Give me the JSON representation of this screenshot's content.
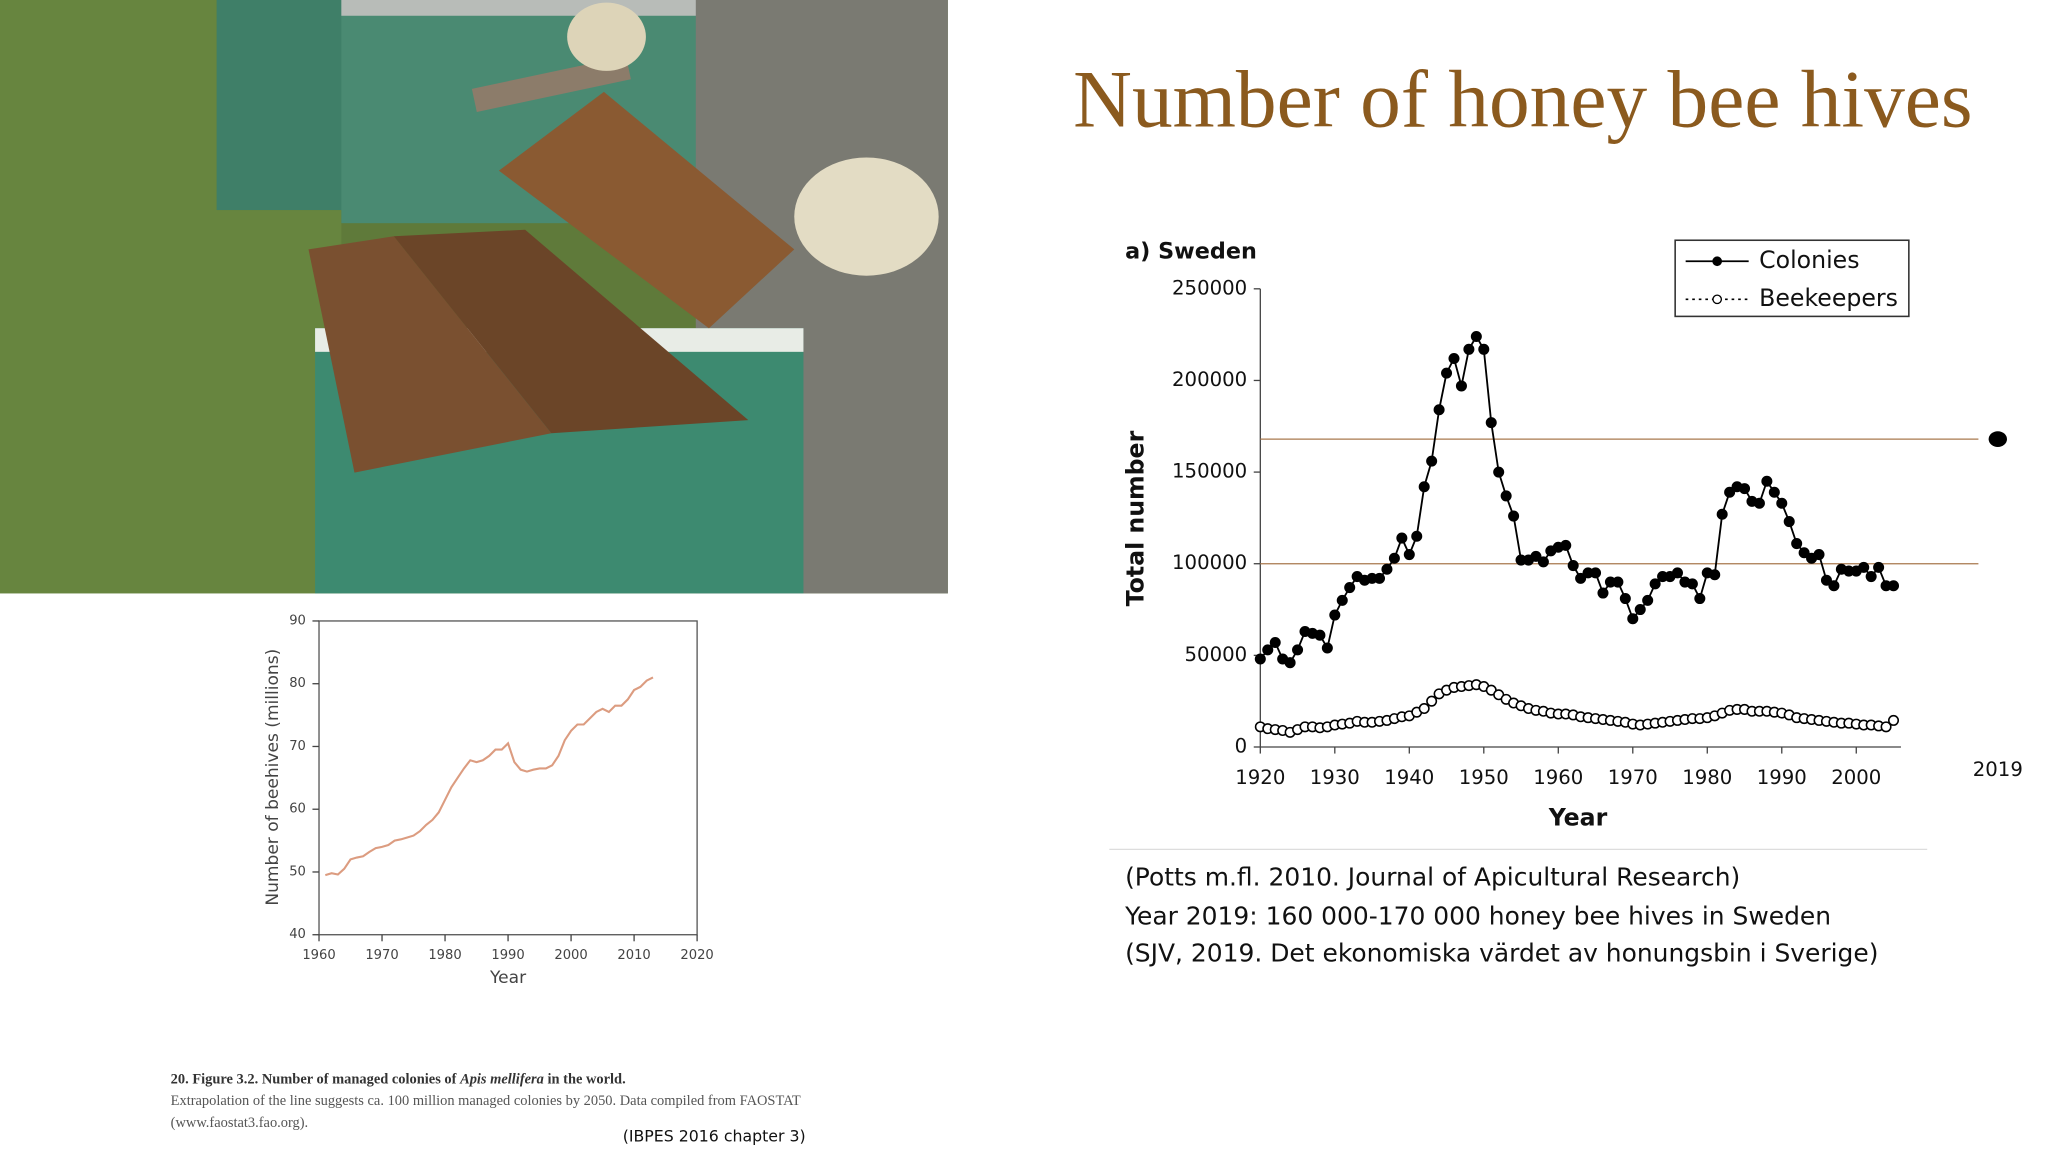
{
  "title": "Number of honey bee hives",
  "citations": [
    "(Potts m.fl. 2010. Journal of Apicultural Research)",
    "Year 2019: 160 000-170 000 honey bee hives in Sweden",
    "(SJV, 2019. Det ekonomiska värdet av honungsbin i Sverige)"
  ],
  "caption": {
    "lead": "20. Figure 3.2. Number of managed colonies of ",
    "species": "Apis mellifera",
    "tail": " in the world.",
    "body_1": "Extrapolation of the line suggests ca. 100 million managed colonies by 2050. Data compiled from FAOSTAT",
    "body_2": "(www.faostat3.fao.org).",
    "source": "(IBPES 2016 chapter 3)"
  },
  "chart_data": [
    {
      "type": "line",
      "title": "a) Sweden",
      "x_label": "Year",
      "y_label": "Total number",
      "x": [
        1920,
        1921,
        1922,
        1923,
        1924,
        1925,
        1926,
        1927,
        1928,
        1929,
        1930,
        1931,
        1932,
        1933,
        1934,
        1935,
        1936,
        1937,
        1938,
        1939,
        1940,
        1941,
        1942,
        1943,
        1944,
        1945,
        1946,
        1947,
        1948,
        1949,
        1950,
        1951,
        1952,
        1953,
        1954,
        1955,
        1956,
        1957,
        1958,
        1959,
        1960,
        1961,
        1962,
        1963,
        1964,
        1965,
        1966,
        1967,
        1968,
        1969,
        1970,
        1971,
        1972,
        1973,
        1974,
        1975,
        1976,
        1977,
        1978,
        1979,
        1980,
        1981,
        1982,
        1983,
        1984,
        1985,
        1986,
        1987,
        1988,
        1989,
        1990,
        1991,
        1992,
        1993,
        1994,
        1995,
        1996,
        1997,
        1998,
        1999,
        2000,
        2001,
        2002,
        2003,
        2004,
        2005
      ],
      "series": [
        {
          "name": "Colonies",
          "color": "#000000",
          "marker": "filled",
          "linestyle": "solid",
          "values": [
            48000,
            53000,
            57000,
            48000,
            46000,
            53000,
            63000,
            62000,
            61000,
            54000,
            72000,
            80000,
            87000,
            93000,
            91000,
            92000,
            92000,
            97000,
            103000,
            114000,
            105000,
            115000,
            142000,
            156000,
            184000,
            204000,
            212000,
            197000,
            217000,
            224000,
            217000,
            177000,
            150000,
            137000,
            126000,
            102000,
            102000,
            104000,
            101000,
            107000,
            109000,
            110000,
            99000,
            92000,
            95000,
            95000,
            84000,
            90000,
            90000,
            81000,
            70000,
            75000,
            80000,
            89000,
            93000,
            93000,
            95000,
            90000,
            89000,
            81000,
            95000,
            94000,
            127000,
            139000,
            142000,
            141000,
            134000,
            133000,
            145000,
            139000,
            133000,
            123000,
            111000,
            106000,
            103000,
            105000,
            91000,
            88000,
            97000,
            96000,
            96000,
            98000,
            93000,
            98000,
            88000,
            88000
          ]
        },
        {
          "name": "Beekeepers",
          "color": "#000000",
          "marker": "open",
          "linestyle": "dotted",
          "values": [
            11000,
            10000,
            9500,
            9000,
            8000,
            9500,
            11000,
            11000,
            10500,
            11000,
            12000,
            12500,
            13000,
            14000,
            13500,
            13500,
            14000,
            14500,
            15500,
            16500,
            17000,
            19000,
            21000,
            25000,
            29000,
            31000,
            32500,
            33000,
            33500,
            34000,
            33000,
            31000,
            28500,
            26000,
            24000,
            22500,
            21000,
            20000,
            19500,
            18500,
            18000,
            18000,
            17500,
            16500,
            16000,
            15500,
            15000,
            14500,
            14000,
            13500,
            12500,
            12000,
            12500,
            13000,
            13500,
            14000,
            14500,
            15000,
            15500,
            15500,
            16000,
            17000,
            18500,
            20000,
            20500,
            20500,
            19500,
            19500,
            19500,
            19000,
            18500,
            17500,
            16000,
            15500,
            15000,
            14500,
            14000,
            13500,
            13000,
            13000,
            12500,
            12000,
            12000,
            11500,
            11000,
            14500
          ]
        }
      ],
      "xlim": [
        1920,
        2006
      ],
      "xticks": [
        1920,
        1930,
        1940,
        1950,
        1960,
        1970,
        1980,
        1990,
        2000
      ],
      "ylim": [
        0,
        250000
      ],
      "yticks": [
        0,
        50000,
        100000,
        150000,
        200000,
        250000
      ],
      "reference_lines": [
        100000,
        168000
      ],
      "reference_color": "#a8784e",
      "annotation": {
        "x": 2019,
        "y": 168000
      },
      "legend": "upper right",
      "grid": false
    },
    {
      "type": "line",
      "x_label": "Year",
      "y_label": "Number of beehives (millions)",
      "x": [
        1961,
        1962,
        1963,
        1964,
        1965,
        1966,
        1967,
        1968,
        1969,
        1970,
        1971,
        1972,
        1973,
        1974,
        1975,
        1976,
        1977,
        1978,
        1979,
        1980,
        1981,
        1982,
        1983,
        1984,
        1985,
        1986,
        1987,
        1988,
        1989,
        1990,
        1991,
        1992,
        1993,
        1994,
        1995,
        1996,
        1997,
        1998,
        1999,
        2000,
        2001,
        2002,
        2003,
        2004,
        2005,
        2006,
        2007,
        2008,
        2009,
        2010,
        2011,
        2012,
        2013
      ],
      "values": [
        49.5,
        49.8,
        49.6,
        50.5,
        52,
        52.3,
        52.5,
        53.2,
        53.8,
        54,
        54.3,
        55,
        55.2,
        55.5,
        55.8,
        56.5,
        57.5,
        58.3,
        59.5,
        61.5,
        63.5,
        65,
        66.5,
        67.8,
        67.5,
        67.8,
        68.5,
        69.5,
        69.5,
        70.5,
        67.5,
        66.3,
        66,
        66.3,
        66.5,
        66.5,
        67,
        68.5,
        71,
        72.5,
        73.5,
        73.5,
        74.5,
        75.5,
        76,
        75.5,
        76.5,
        76.5,
        77.5,
        79,
        79.5,
        80.5,
        81
      ],
      "color": "#dc9c80",
      "xlim": [
        1960,
        2020
      ],
      "xticks": [
        1960,
        1970,
        1980,
        1990,
        2000,
        2010,
        2020
      ],
      "ylim": [
        40,
        90
      ],
      "yticks": [
        40,
        50,
        60,
        70,
        80,
        90
      ],
      "grid": false
    }
  ]
}
